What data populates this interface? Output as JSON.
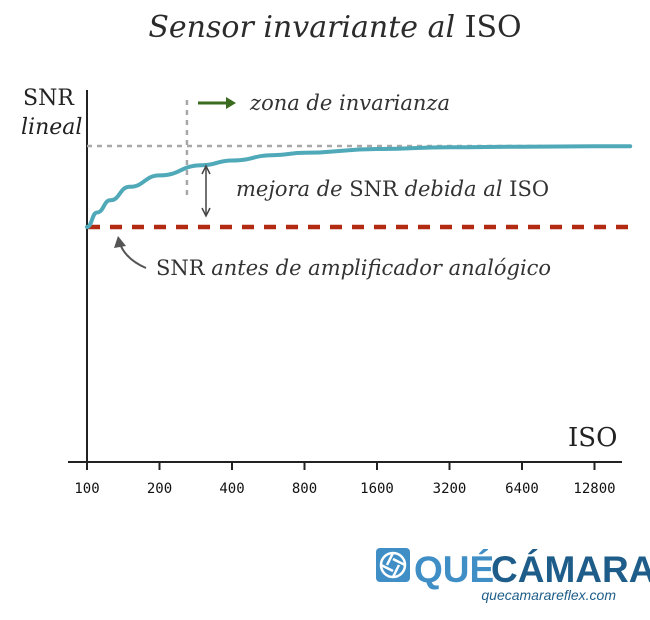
{
  "chart_data": {
    "type": "line",
    "title_prefix": "Sensor invariante al",
    "title_suffix": "ISO",
    "ylabel_top": "SNR",
    "ylabel_bottom": "lineal",
    "xlabel": "ISO",
    "categories": [
      "100",
      "200",
      "400",
      "800",
      "1600",
      "3200",
      "6400",
      "12800"
    ],
    "ylim": [
      0,
      1
    ],
    "series": [
      {
        "color": "#4fa9b8",
        "x": [
          100,
          110,
          125,
          150,
          200,
          300,
          400,
          600,
          800,
          1600,
          3200,
          6400,
          12800,
          18000
        ],
        "values": [
          0.7,
          0.743,
          0.779,
          0.819,
          0.853,
          0.883,
          0.897,
          0.913,
          0.92,
          0.931,
          0.936,
          0.938,
          0.939,
          0.939
        ]
      }
    ],
    "reference_lines": {
      "baseline_value": 0.7,
      "baseline_color": "#b22a12",
      "max_value": 0.94,
      "max_color": "#a8a8a8",
      "invariance_start_iso": 260
    },
    "annotations": {
      "invariance": "zona de invarianza",
      "improvement_italic": "mejora de",
      "improvement_snr": "SNR",
      "improvement_italic_2": "debida al",
      "improvement_iso": "ISO",
      "baseline_snr": "SNR",
      "baseline_italic": "antes de amplificador analógico"
    },
    "arrow_color": "#3a6b1f",
    "grid": false,
    "legend": "none"
  },
  "logo": {
    "word1": "QUÉ",
    "word2": "CÁMARA",
    "url": "quecamarareflex.com",
    "color_dark": "#1e5d8a",
    "color_light": "#3f8fc6"
  }
}
